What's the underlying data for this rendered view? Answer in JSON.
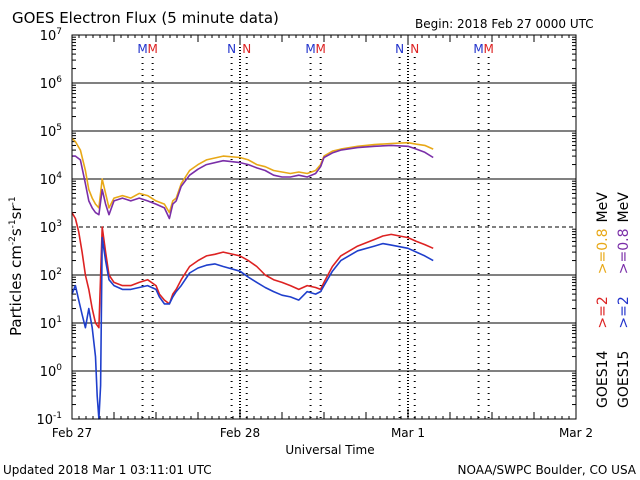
{
  "chart_data": {
    "type": "line",
    "title": "GOES Electron Flux (5 minute data)",
    "begin_label": "Begin: 2018 Feb 27 0000 UTC",
    "xlabel": "Universal Time",
    "ylabel_main": "Particles cm",
    "ylabel_sup1": "-2",
    "ylabel_mid": "s",
    "ylabel_sup2": "-1",
    "ylabel_sr": "sr",
    "ylabel_sup3": "-1",
    "x_range_days": [
      0,
      3
    ],
    "x_tick_labels": [
      {
        "day": 0,
        "label": "Feb 27"
      },
      {
        "day": 1,
        "label": "Feb 28"
      },
      {
        "day": 2,
        "label": "Mar 1"
      },
      {
        "day": 3,
        "label": "Mar 2"
      }
    ],
    "y_log_range": [
      -1,
      7
    ],
    "y_tick_labels": [
      {
        "exp": 7,
        "base": "10",
        "sup": "7"
      },
      {
        "exp": 6,
        "base": "10",
        "sup": "6"
      },
      {
        "exp": 5,
        "base": "10",
        "sup": "5"
      },
      {
        "exp": 4,
        "base": "10",
        "sup": "4"
      },
      {
        "exp": 3,
        "base": "10",
        "sup": "3"
      },
      {
        "exp": 2,
        "base": "10",
        "sup": "2"
      },
      {
        "exp": 1,
        "base": "10",
        "sup": "1"
      },
      {
        "exp": 0,
        "base": "10",
        "sup": "0"
      },
      {
        "exp": -1,
        "base": "10",
        "sup": "-1"
      }
    ],
    "threshold_exp": 3,
    "markers": [
      {
        "day": 0.42,
        "label": "M",
        "color": "#2233cc"
      },
      {
        "day": 0.48,
        "label": "M",
        "color": "#dd2222"
      },
      {
        "day": 0.95,
        "label": "N",
        "color": "#2233cc"
      },
      {
        "day": 1.04,
        "label": "N",
        "color": "#dd2222"
      },
      {
        "day": 1.42,
        "label": "M",
        "color": "#2233cc"
      },
      {
        "day": 1.48,
        "label": "M",
        "color": "#dd2222"
      },
      {
        "day": 1.95,
        "label": "N",
        "color": "#2233cc"
      },
      {
        "day": 2.04,
        "label": "N",
        "color": "#dd2222"
      },
      {
        "day": 2.42,
        "label": "M",
        "color": "#2233cc"
      },
      {
        "day": 2.48,
        "label": "M",
        "color": "#dd2222"
      }
    ],
    "legend": [
      {
        "label": "GOES15",
        "color": "#000000"
      },
      {
        "label": ">=2",
        "color": "#2233cc"
      },
      {
        "label": ">=0.8",
        "color": "#7a2ea8"
      },
      {
        "label": "MeV",
        "color": "#000000"
      },
      {
        "label": "GOES14",
        "color": "#000000"
      },
      {
        "label": ">=2",
        "color": "#dd2222"
      },
      {
        "label": ">=0.8",
        "color": "#e8a817"
      },
      {
        "label": "MeV",
        "color": "#000000"
      }
    ],
    "series": [
      {
        "name": "GOES14 >=0.8 MeV",
        "color": "#e8a817",
        "x": [
          0,
          0.02,
          0.05,
          0.08,
          0.1,
          0.12,
          0.14,
          0.16,
          0.18,
          0.2,
          0.22,
          0.25,
          0.3,
          0.35,
          0.4,
          0.45,
          0.5,
          0.55,
          0.58,
          0.6,
          0.62,
          0.65,
          0.7,
          0.75,
          0.8,
          0.9,
          1.0,
          1.05,
          1.1,
          1.15,
          1.2,
          1.25,
          1.3,
          1.35,
          1.4,
          1.45,
          1.48,
          1.5,
          1.55,
          1.6,
          1.7,
          1.8,
          1.9,
          2.0,
          2.05,
          2.1,
          2.15
        ],
        "y": [
          70000,
          60000,
          40000,
          15000,
          6000,
          4000,
          3000,
          2500,
          10000,
          5000,
          2500,
          4000,
          4500,
          4000,
          5000,
          4500,
          3500,
          3000,
          2000,
          3500,
          4000,
          8000,
          15000,
          20000,
          25000,
          30000,
          28000,
          25000,
          20000,
          18000,
          15000,
          14000,
          13000,
          14000,
          13000,
          15000,
          20000,
          30000,
          38000,
          42000,
          48000,
          52000,
          55000,
          57000,
          53000,
          50000,
          42000
        ]
      },
      {
        "name": "GOES15 >=0.8 MeV",
        "color": "#7a2ea8",
        "x": [
          0,
          0.02,
          0.05,
          0.08,
          0.1,
          0.12,
          0.14,
          0.16,
          0.18,
          0.2,
          0.22,
          0.25,
          0.3,
          0.35,
          0.4,
          0.45,
          0.5,
          0.55,
          0.58,
          0.6,
          0.62,
          0.65,
          0.7,
          0.75,
          0.8,
          0.9,
          1.0,
          1.05,
          1.1,
          1.15,
          1.2,
          1.25,
          1.3,
          1.35,
          1.4,
          1.45,
          1.48,
          1.5,
          1.55,
          1.6,
          1.7,
          1.8,
          1.9,
          2.0,
          2.05,
          2.1,
          2.15
        ],
        "y": [
          30000,
          30000,
          25000,
          8000,
          3500,
          2500,
          2000,
          1800,
          6000,
          3000,
          1800,
          3500,
          4000,
          3500,
          4000,
          3500,
          3000,
          2500,
          1500,
          3000,
          3500,
          7000,
          12000,
          16000,
          20000,
          24000,
          22000,
          20000,
          17000,
          15000,
          12000,
          11000,
          11000,
          12000,
          11000,
          13000,
          18000,
          28000,
          35000,
          40000,
          45000,
          48000,
          50000,
          48000,
          42000,
          36000,
          28000
        ]
      },
      {
        "name": "GOES14 >=2 MeV",
        "color": "#dd2222",
        "x": [
          0,
          0.02,
          0.04,
          0.06,
          0.08,
          0.1,
          0.12,
          0.14,
          0.16,
          0.18,
          0.2,
          0.22,
          0.25,
          0.3,
          0.35,
          0.4,
          0.45,
          0.5,
          0.52,
          0.55,
          0.58,
          0.6,
          0.62,
          0.65,
          0.7,
          0.75,
          0.8,
          0.85,
          0.9,
          1.0,
          1.05,
          1.1,
          1.15,
          1.2,
          1.25,
          1.3,
          1.35,
          1.4,
          1.45,
          1.48,
          1.5,
          1.55,
          1.6,
          1.7,
          1.8,
          1.85,
          1.9,
          2.0,
          2.05,
          2.1,
          2.15
        ],
        "y": [
          2000,
          1500,
          800,
          300,
          100,
          50,
          20,
          10,
          8,
          1000,
          300,
          100,
          70,
          60,
          60,
          70,
          80,
          60,
          40,
          30,
          25,
          40,
          50,
          80,
          150,
          200,
          250,
          270,
          300,
          250,
          200,
          150,
          100,
          80,
          70,
          60,
          50,
          60,
          55,
          50,
          70,
          150,
          250,
          400,
          550,
          650,
          700,
          600,
          500,
          430,
          360
        ]
      },
      {
        "name": "GOES15 >=2 MeV",
        "color": "#1f3fcc",
        "x": [
          0,
          0.02,
          0.04,
          0.06,
          0.08,
          0.1,
          0.12,
          0.14,
          0.15,
          0.16,
          0.17,
          0.18,
          0.2,
          0.22,
          0.25,
          0.3,
          0.35,
          0.4,
          0.45,
          0.5,
          0.52,
          0.55,
          0.58,
          0.6,
          0.62,
          0.65,
          0.7,
          0.75,
          0.8,
          0.85,
          0.9,
          1.0,
          1.05,
          1.1,
          1.15,
          1.2,
          1.25,
          1.3,
          1.35,
          1.4,
          1.45,
          1.48,
          1.5,
          1.55,
          1.6,
          1.7,
          1.8,
          1.85,
          1.9,
          2.0,
          2.05,
          2.1,
          2.15
        ],
        "y": [
          40,
          60,
          30,
          15,
          8,
          20,
          8,
          2,
          0.3,
          0.1,
          0.5,
          600,
          200,
          80,
          60,
          50,
          50,
          55,
          60,
          50,
          35,
          25,
          25,
          35,
          45,
          60,
          110,
          140,
          160,
          170,
          150,
          120,
          90,
          70,
          55,
          45,
          38,
          35,
          30,
          45,
          40,
          45,
          60,
          120,
          200,
          320,
          400,
          450,
          420,
          360,
          300,
          250,
          200
        ]
      }
    ]
  },
  "footer": {
    "updated": "Updated 2018 Mar  1 03:11:01 UTC",
    "credit": "NOAA/SWPC Boulder, CO USA"
  }
}
